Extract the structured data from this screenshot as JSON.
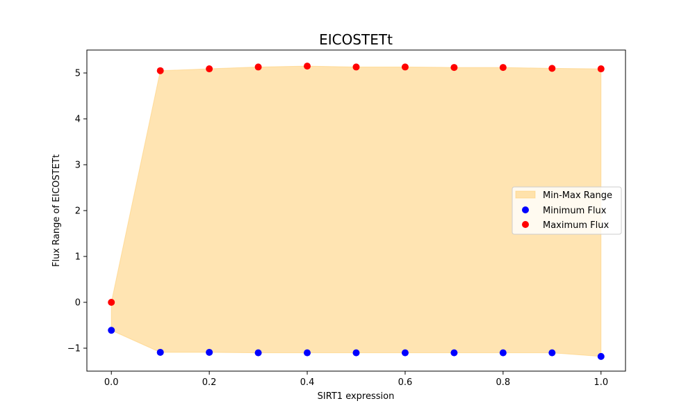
{
  "chart_data": {
    "type": "scatter",
    "title": "EICOSTETt",
    "xlabel": "SIRT1 expression",
    "ylabel": "Flux Range of EICOSTETt",
    "xlim": [
      -0.05,
      1.05
    ],
    "ylim": [
      -1.5,
      5.5
    ],
    "x_ticks": [
      "0.0",
      "0.2",
      "0.4",
      "0.6",
      "0.8",
      "1.0"
    ],
    "x_tick_values": [
      0.0,
      0.2,
      0.4,
      0.6,
      0.8,
      1.0
    ],
    "y_ticks": [
      "−1",
      "0",
      "1",
      "2",
      "3",
      "4",
      "5"
    ],
    "y_tick_values": [
      -1,
      0,
      1,
      2,
      3,
      4,
      5
    ],
    "x": [
      0.0,
      0.1,
      0.2,
      0.3,
      0.4,
      0.5,
      0.6,
      0.7,
      0.8,
      0.9,
      1.0
    ],
    "series": [
      {
        "name": "Minimum Flux",
        "color": "#0000ff",
        "values": [
          -0.61,
          -1.09,
          -1.09,
          -1.1,
          -1.1,
          -1.1,
          -1.1,
          -1.1,
          -1.1,
          -1.1,
          -1.18
        ]
      },
      {
        "name": "Maximum Flux",
        "color": "#ff0000",
        "values": [
          0.0,
          5.05,
          5.09,
          5.13,
          5.15,
          5.13,
          5.13,
          5.12,
          5.12,
          5.1,
          5.09
        ]
      }
    ],
    "fill": {
      "name": "Min-Max Range",
      "color": "#ffc966",
      "opacity": 0.5
    },
    "legend": {
      "placement": "center-right",
      "entries": [
        "Min-Max Range",
        "Minimum Flux",
        "Maximum Flux"
      ]
    },
    "grid": false
  }
}
